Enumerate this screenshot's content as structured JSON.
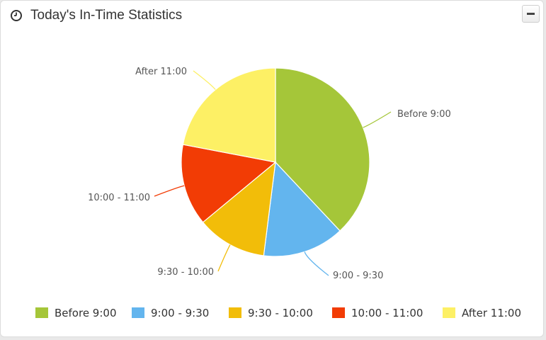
{
  "header": {
    "title": "Today's In-Time Statistics",
    "icon": "clock-icon",
    "collapse_icon": "minus-icon"
  },
  "chart_data": {
    "type": "pie",
    "title": "",
    "slices": [
      {
        "label": "Before 9:00",
        "value": 38,
        "color": "#a5c639"
      },
      {
        "label": "9:00 - 9:30",
        "value": 14,
        "color": "#63b5ee"
      },
      {
        "label": "9:30 - 10:00",
        "value": 12,
        "color": "#f2bd09"
      },
      {
        "label": "10:00 - 11:00",
        "value": 14,
        "color": "#f23c05"
      },
      {
        "label": "After 11:00",
        "value": 22,
        "color": "#fdf065"
      }
    ],
    "legend_position": "bottom"
  }
}
